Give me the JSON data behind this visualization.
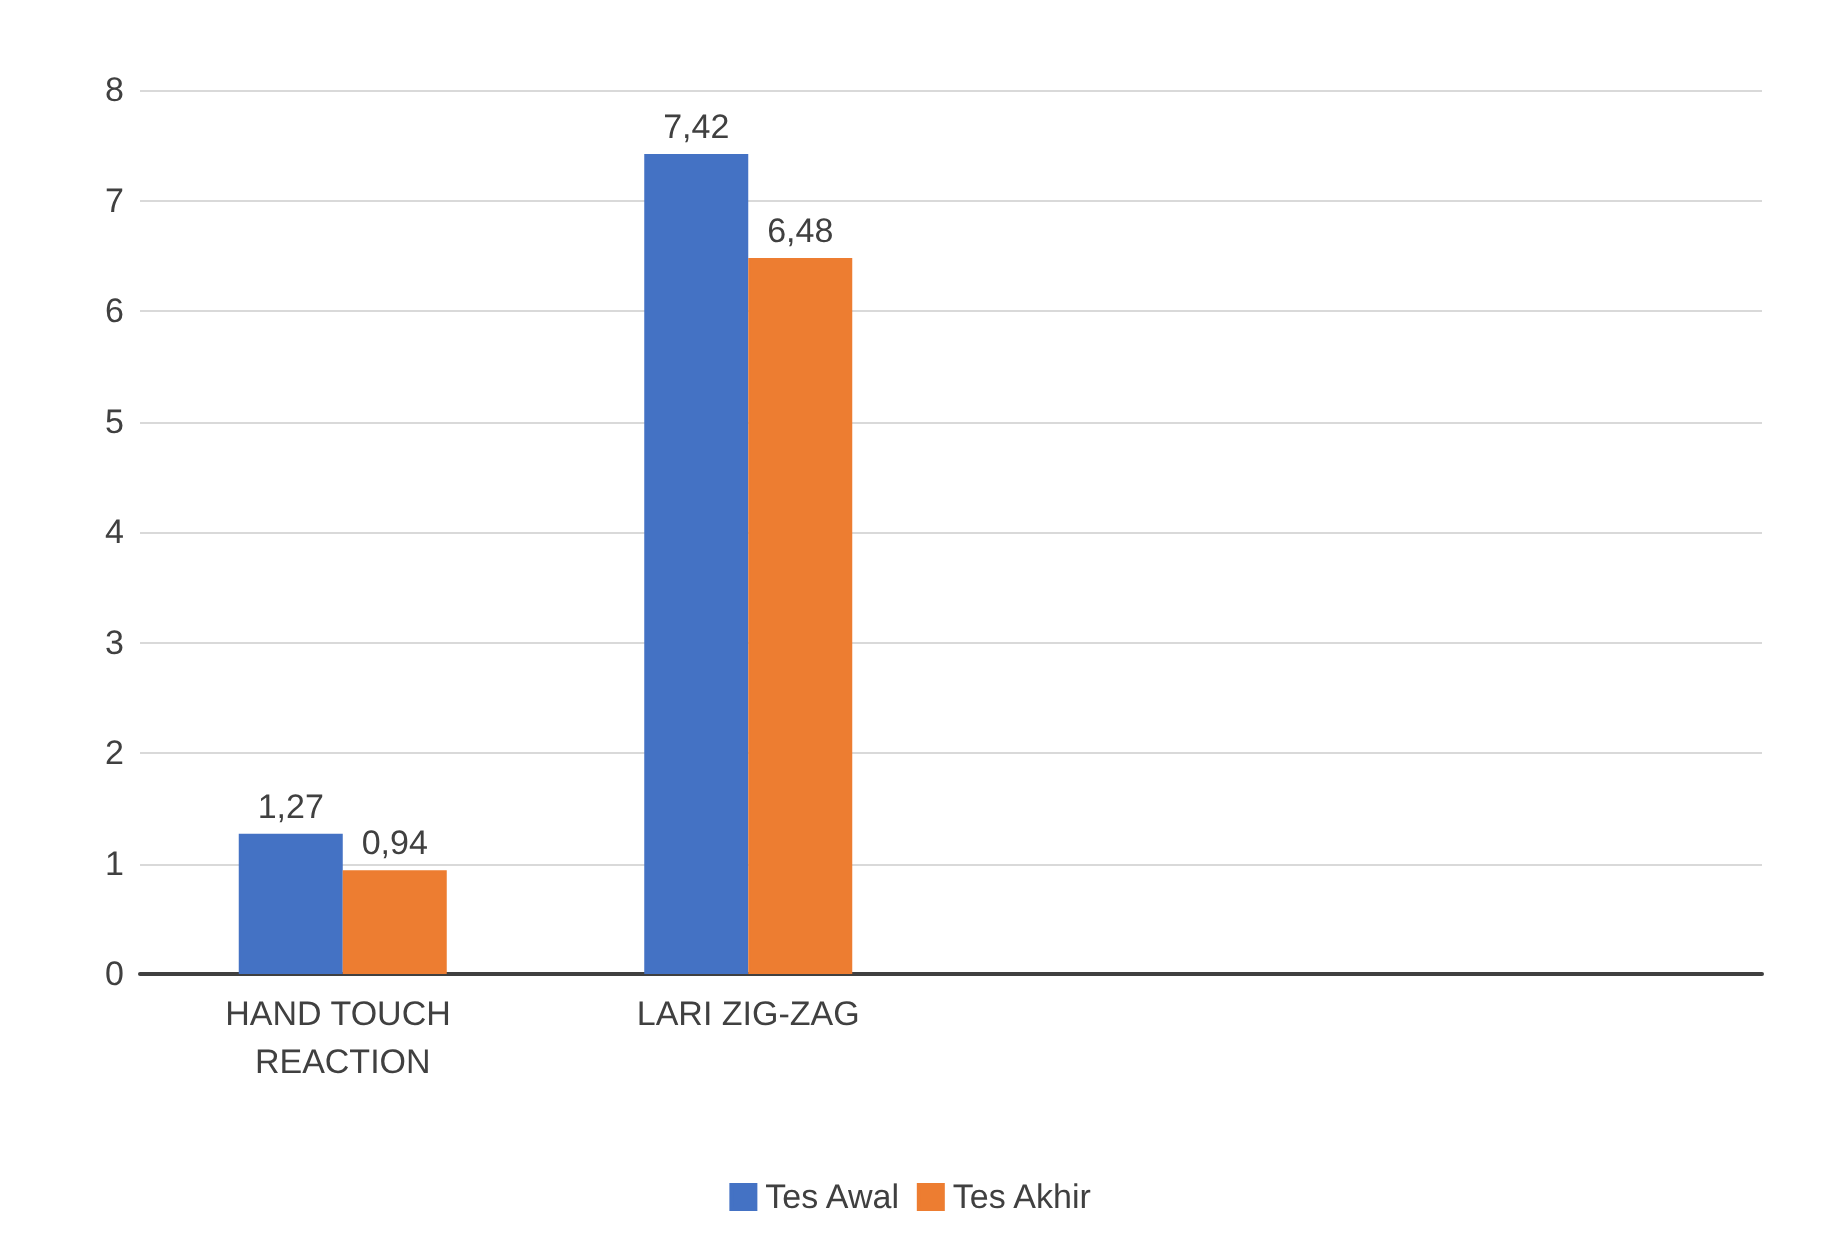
{
  "chart_data": {
    "type": "bar",
    "categories": [
      "HAND TOUCH REACTION",
      "LARI ZIG-ZAG",
      null,
      null
    ],
    "series": [
      {
        "name": "Tes Awal",
        "color": "#4472c4",
        "values": [
          1.27,
          7.42,
          null,
          null
        ],
        "value_labels": [
          "1,27",
          "7,42",
          null,
          null
        ]
      },
      {
        "name": "Tes Akhir",
        "color": "#ed7d31",
        "values": [
          0.94,
          6.48,
          null,
          null
        ],
        "value_labels": [
          "0,94",
          "6,48",
          null,
          null
        ]
      }
    ],
    "ylim": [
      0,
      8
    ],
    "yticks": [
      0,
      1,
      2,
      3,
      4,
      5,
      6,
      7,
      8
    ],
    "grid": "y",
    "legend": "bottom"
  }
}
